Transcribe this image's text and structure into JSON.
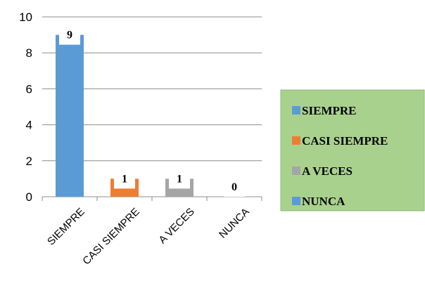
{
  "chart_data": {
    "type": "bar",
    "categories": [
      "SIEMPRE",
      "CASI SIEMPRE",
      "A VECES",
      "NUNCA"
    ],
    "values": [
      9,
      1,
      1,
      0
    ],
    "colors": [
      "#5B9BD5",
      "#ED7D31",
      "#A5A5A5",
      "#5B9BD5"
    ],
    "data_labels": [
      "9",
      "1",
      "1",
      "0"
    ],
    "ylim": [
      0,
      10
    ],
    "yticks": [
      "0",
      "2",
      "4",
      "6",
      "8",
      "10"
    ],
    "grid": true,
    "legend": {
      "placement": "right",
      "background": "#A9D18E",
      "entries": [
        "SIEMPRE",
        "CASI SIEMPRE",
        "A VECES",
        "NUNCA"
      ]
    }
  }
}
